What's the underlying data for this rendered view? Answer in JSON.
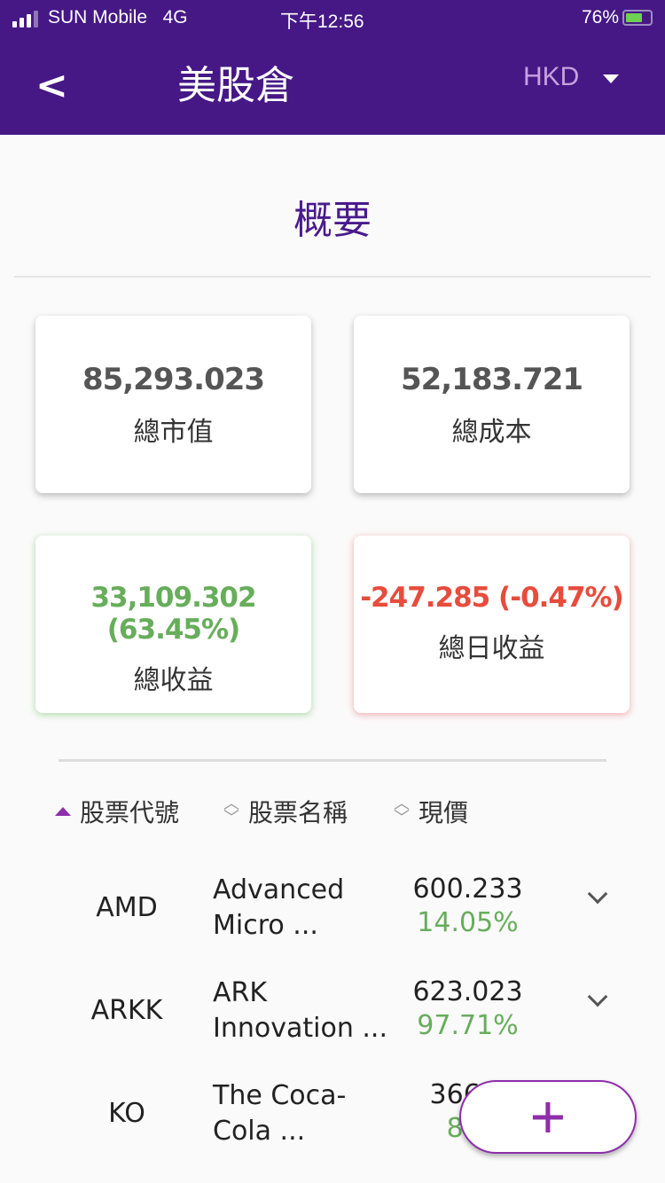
{
  "status": {
    "carrier": "SUN Mobile",
    "network": "4G",
    "time": "下午12:56",
    "battery": "76%"
  },
  "header": {
    "title": "美股倉",
    "currency": "HKD",
    "back_icon": "chevron-left-icon"
  },
  "section_title": "概要",
  "summary": [
    {
      "value": "85,293.023",
      "label": "總市值"
    },
    {
      "value": "52,183.721",
      "label": "總成本"
    },
    {
      "value": "33,109.302 (63.45%)",
      "label": "總收益",
      "color": "#67ad5b"
    },
    {
      "value": "-247.285 (-0.47%)",
      "label": "總日收益",
      "color": "#e74c3c"
    }
  ],
  "columns": [
    "股票代號",
    "股票名稱",
    "現價"
  ],
  "rows": [
    {
      "symbol": "AMD",
      "name1": "Advanced",
      "name2": "Micro ...",
      "price": "600.233",
      "change": "14.05%"
    },
    {
      "symbol": "ARKK",
      "name1": "ARK",
      "name2": "Innovation ...",
      "price": "623.023",
      "change": "97.71%"
    },
    {
      "symbol": "KO",
      "name1": "The Coca-",
      "name2": "Cola ...",
      "price": "366.2",
      "change": "8.2"
    }
  ],
  "fab": "+"
}
